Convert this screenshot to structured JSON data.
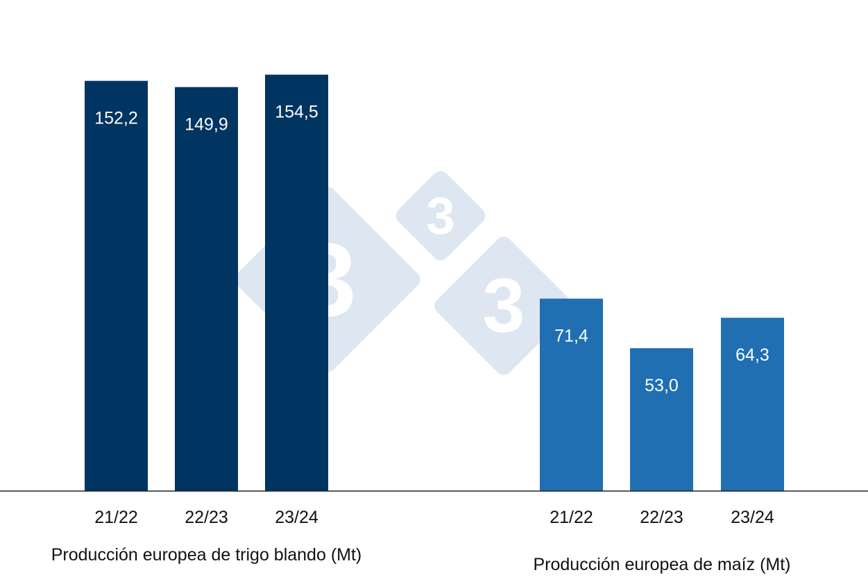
{
  "watermark": {
    "glyph": "3",
    "color": "#dde6f1",
    "text_color": "#ffffff"
  },
  "chart_data": {
    "type": "bar",
    "ylim": [
      0,
      175
    ],
    "grid": false,
    "legend": "none",
    "groups": [
      {
        "label": "Producción europea de trigo blando (Mt)",
        "color": "#003461",
        "categories": [
          "21/22",
          "22/23",
          "23/24"
        ],
        "values": [
          152.2,
          149.9,
          154.5
        ],
        "value_labels": [
          "152,2",
          "149,9",
          "154,5"
        ]
      },
      {
        "label": "Producción europea de maíz (Mt)",
        "color": "#1f6fb2",
        "categories": [
          "21/22",
          "22/23",
          "23/24"
        ],
        "values": [
          71.4,
          53.0,
          64.3
        ],
        "value_labels": [
          "71,4",
          "53,0",
          "64,3"
        ]
      }
    ]
  }
}
